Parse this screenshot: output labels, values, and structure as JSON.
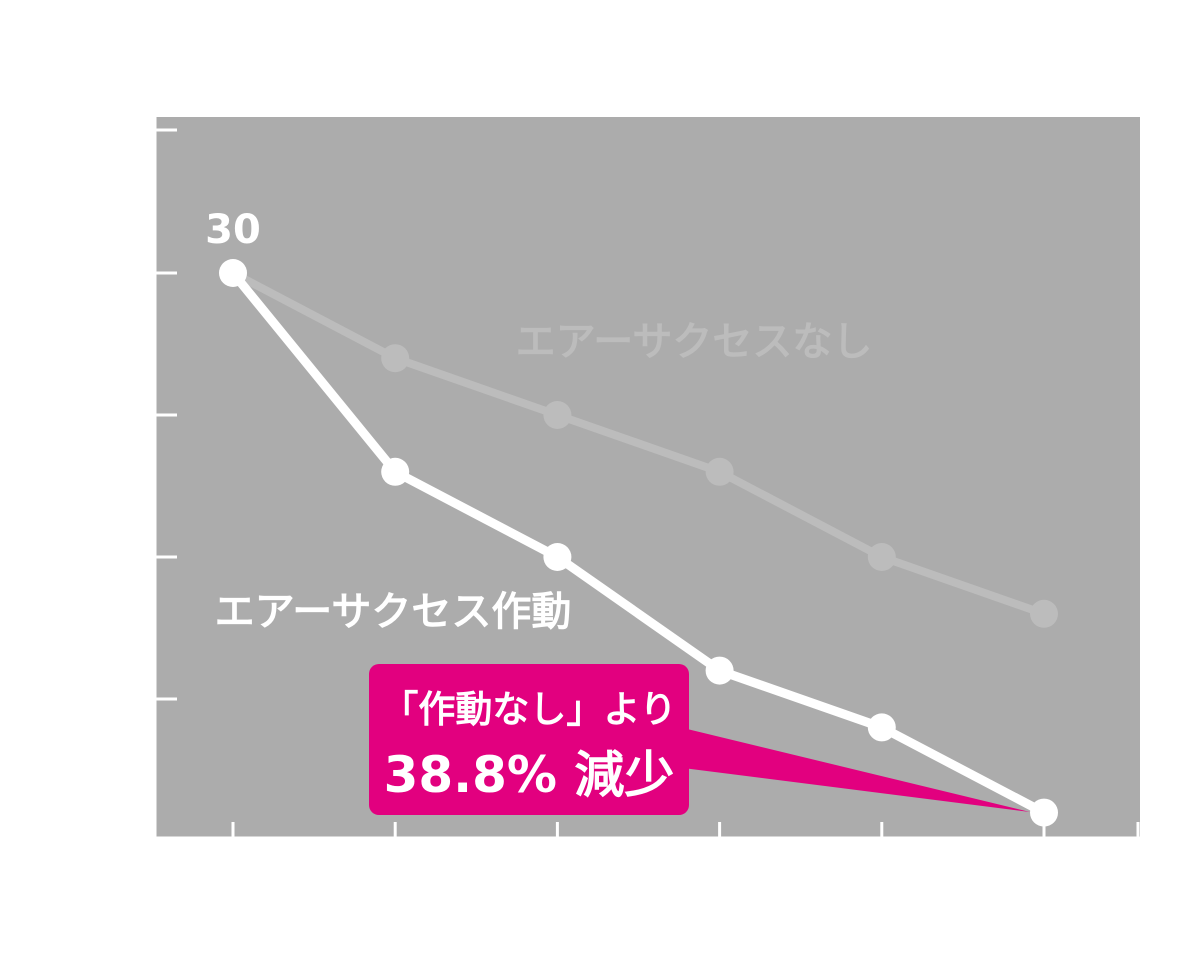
{
  "colors": {
    "plot_bg": "#acacac",
    "axis": "#ffffff",
    "with_series": "#ffffff",
    "without_series": "#bcbcbc",
    "callout": "#e2007f"
  },
  "chart_data": {
    "type": "line",
    "title": "",
    "xlabel": "",
    "ylabel": "",
    "x": [
      1,
      2,
      3,
      4,
      5,
      6
    ],
    "ylim": [
      5,
      35
    ],
    "y_ticks": [
      10,
      15,
      20,
      25,
      30
    ],
    "grid": false,
    "series": [
      {
        "name": "エアーサクセスなし",
        "values": [
          30,
          27,
          25,
          23,
          20,
          18
        ]
      },
      {
        "name": "エアーサクセス作動",
        "values": [
          30,
          23,
          20,
          16,
          14,
          11
        ]
      }
    ],
    "annotations": {
      "start_value": "30",
      "callout_line1": "「作動なし」より",
      "callout_line2": "38.8% 減少"
    }
  }
}
